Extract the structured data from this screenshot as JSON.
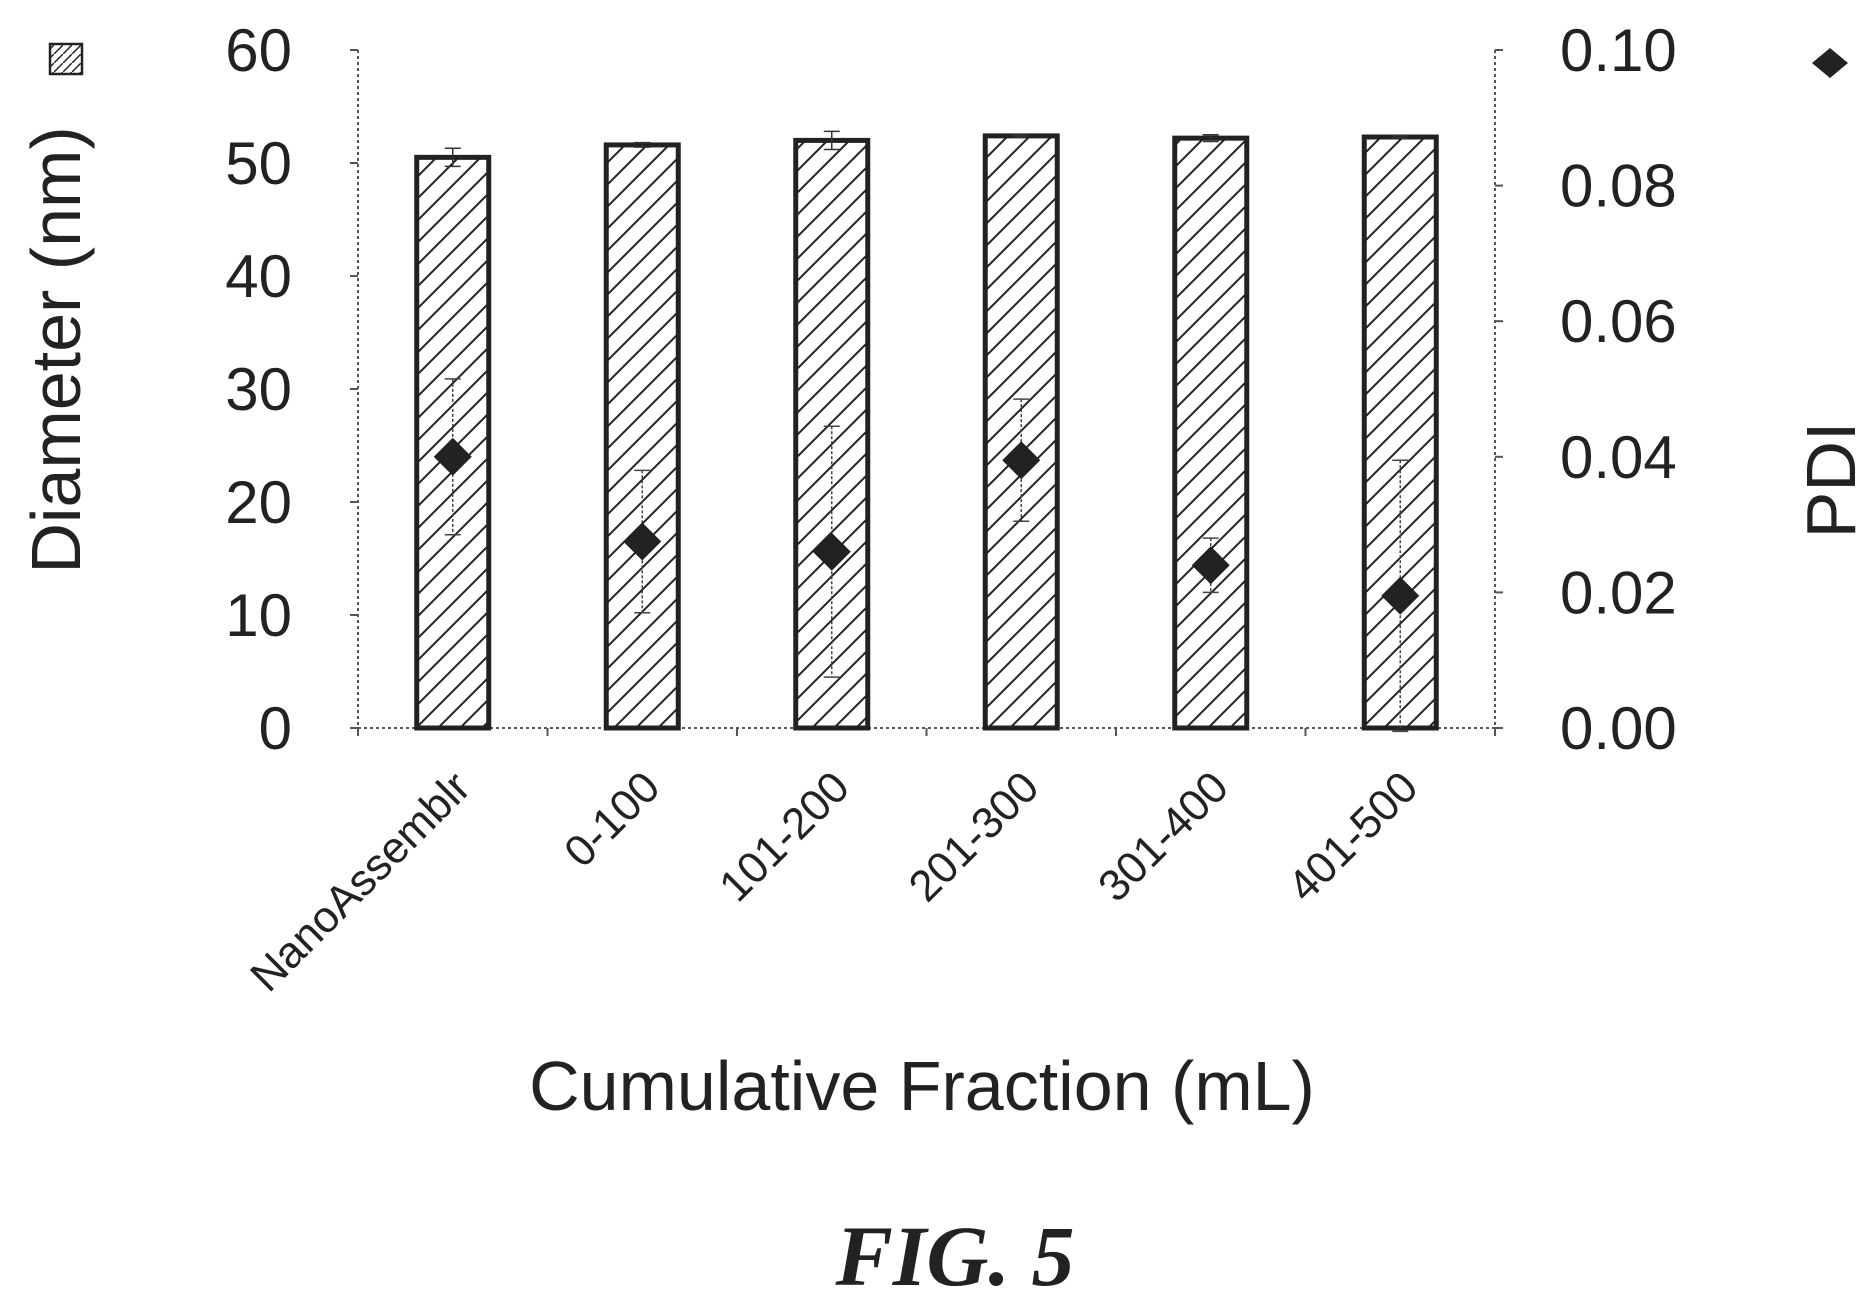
{
  "chart_data": {
    "type": "bar",
    "categories": [
      "NanoAssemblr",
      "0-100",
      "101-200",
      "201-300",
      "301-400",
      "401-500"
    ],
    "xlabel": "Cumulative Fraction (mL)",
    "ylabel": "Diameter (nm)",
    "y2label": "PDI",
    "ylim": [
      0,
      60
    ],
    "y2lim": [
      0,
      0.1
    ],
    "yticks": [
      "0",
      "10",
      "20",
      "30",
      "40",
      "50",
      "60"
    ],
    "y2ticks": [
      "0.00",
      "0.02",
      "0.04",
      "0.06",
      "0.08",
      "0.10"
    ],
    "series": [
      {
        "axis": "left",
        "marker": "hatched-bar",
        "values": [
          50.5,
          51.6,
          52.0,
          52.4,
          52.2,
          52.3
        ],
        "errors": [
          0.8,
          0.2,
          0.8,
          0.1,
          0.3,
          0.1
        ]
      },
      {
        "axis": "right",
        "marker": "diamond",
        "values": [
          0.04,
          0.0275,
          0.026,
          0.0395,
          0.024,
          0.0195
        ],
        "errors": [
          0.0115,
          0.0105,
          0.0185,
          0.009,
          0.004,
          0.02
        ]
      }
    ],
    "grid": false,
    "caption": "FIG. 5"
  },
  "colors": {
    "ink": "#222222",
    "background": "#ffffff"
  },
  "icons": {
    "bar_legend": "hatched-square-icon",
    "pdi_legend": "diamond-icon"
  }
}
